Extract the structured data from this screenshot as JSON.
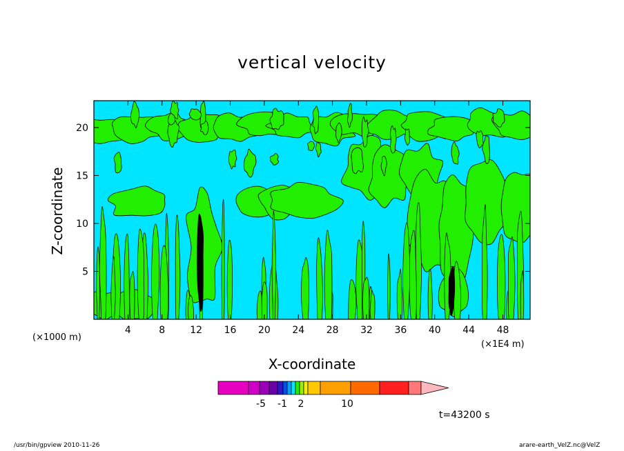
{
  "chart_data": {
    "type": "heatmap",
    "title": "vertical velocity",
    "xlabel": "X-coordinate",
    "ylabel": "Z-coordinate",
    "x_unit_left": "(×1000 m)",
    "x_unit_right": "(×1E4 m)",
    "xlim": [
      0,
      51.2
    ],
    "ylim": [
      0,
      22.8
    ],
    "xticks": [
      4,
      8,
      12,
      16,
      20,
      24,
      28,
      32,
      36,
      40,
      44,
      48
    ],
    "yticks": [
      5,
      10,
      15,
      20
    ],
    "background_color": "#00e5ff",
    "field_color": "#22ee00",
    "strong_color": "#000000",
    "colorbar": {
      "colors": [
        "#e600c0",
        "#d000c8",
        "#9a00b8",
        "#6a00a8",
        "#2e16c8",
        "#0050f0",
        "#00a0ff",
        "#00e5ff",
        "#22ee00",
        "#9af000",
        "#f0f000",
        "#ffc800",
        "#ffa000",
        "#ff6a00",
        "#ff2020",
        "#ff7878"
      ],
      "extension_color": "#ffb8c0",
      "labels": [
        "-5",
        "-1",
        "2",
        "10"
      ]
    },
    "green_regions": [
      {
        "x": [
          0,
          51.2
        ],
        "z": [
          18.5,
          21.5
        ]
      },
      {
        "x": [
          3,
          8
        ],
        "z": [
          10.5,
          14.5
        ]
      },
      {
        "x": [
          17,
          23
        ],
        "z": [
          11,
          14
        ]
      },
      {
        "x": [
          22.5,
          27.5
        ],
        "z": [
          10.5,
          15
        ]
      },
      {
        "x": [
          30,
          40
        ],
        "z": [
          12.5,
          18.5
        ]
      },
      {
        "x": [
          38,
          51.2
        ],
        "z": [
          6,
          16
        ]
      },
      {
        "x": [
          12,
          14.5
        ],
        "z": [
          0,
          12
        ]
      },
      {
        "x": [
          41,
          43
        ],
        "z": [
          0,
          6
        ]
      },
      {
        "x": [
          0,
          6
        ],
        "z": [
          0,
          3.5
        ]
      }
    ],
    "strong_updrafts": [
      {
        "x": 12.5,
        "z": [
          0.5,
          11
        ]
      },
      {
        "x": 42,
        "z": [
          0.5,
          5.5
        ]
      }
    ]
  },
  "timestamp": "t=43200 s",
  "footer_left": "/usr/bin/gpview   2010-11-26",
  "footer_right": "arare-earth_VelZ.nc@VelZ"
}
